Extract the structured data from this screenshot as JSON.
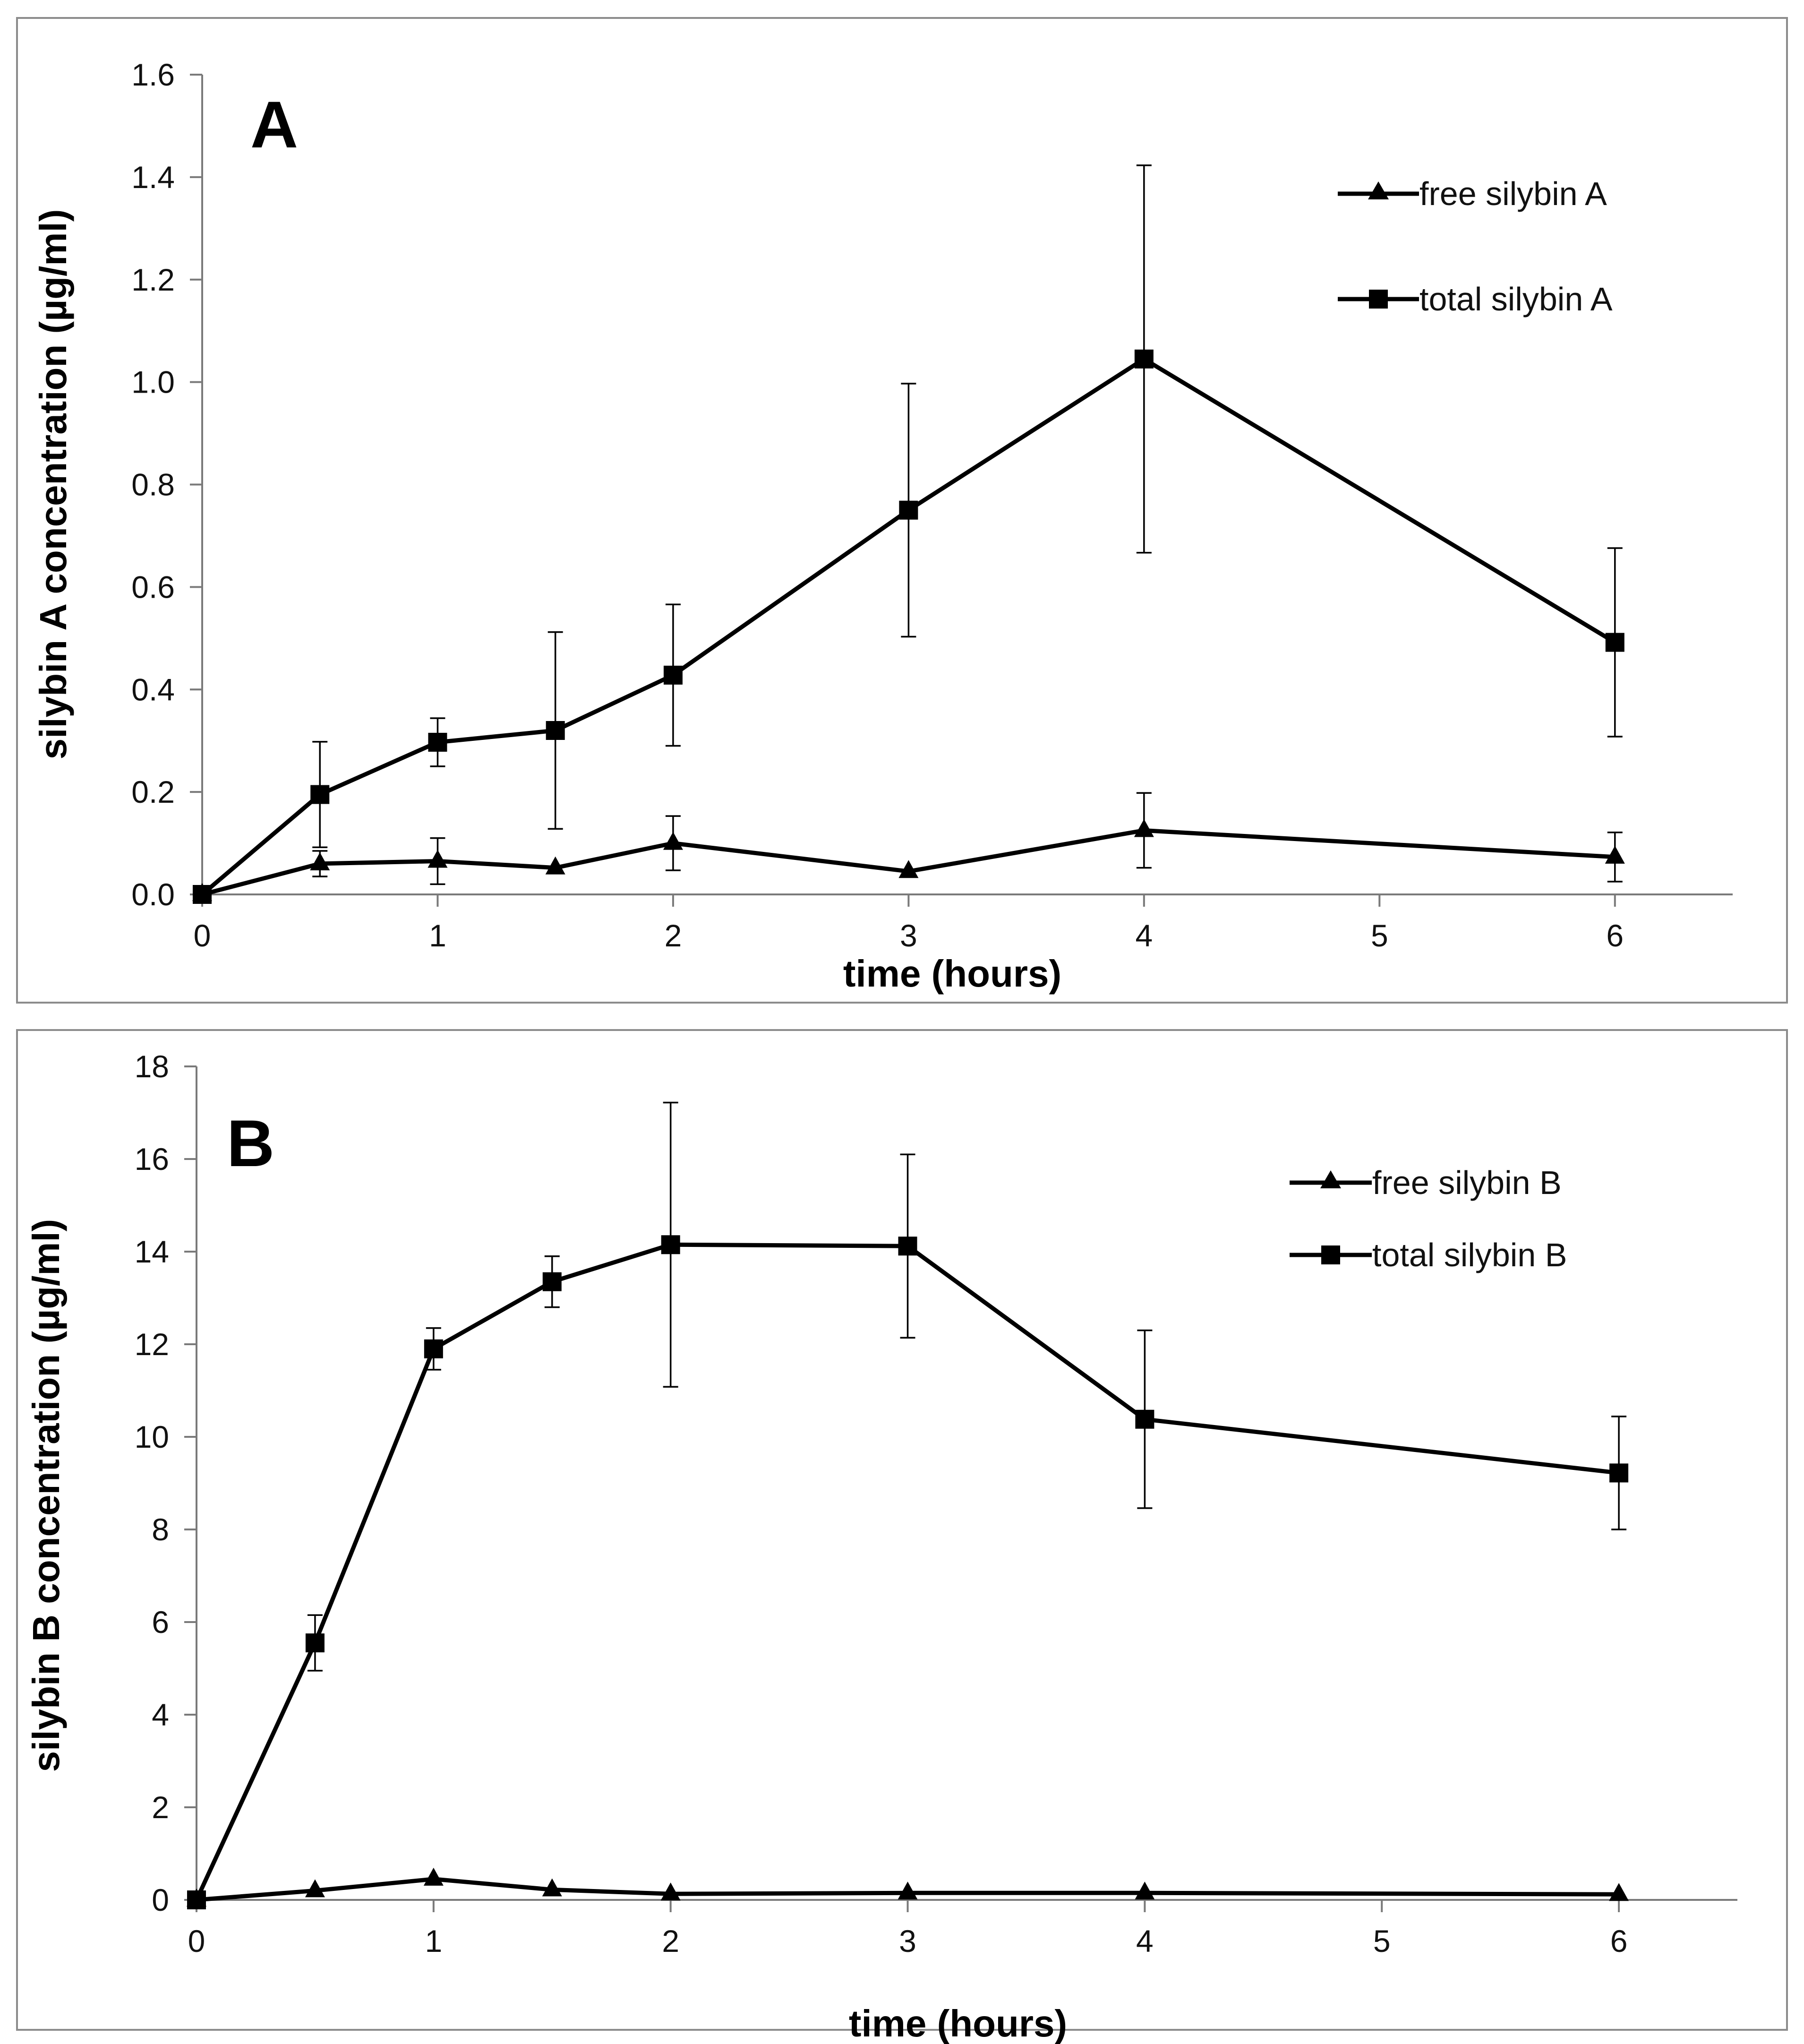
{
  "chart_data": [
    {
      "type": "line",
      "panel_label": "A",
      "xlabel": "time (hours)",
      "ylabel": "silybin A  concentration (µg/ml)",
      "xlim": [
        0,
        6.5
      ],
      "ylim": [
        0,
        1.6
      ],
      "xticks": [
        "0",
        "1",
        "2",
        "3",
        "4",
        "5",
        "6"
      ],
      "yticks": [
        "0.0",
        "0.2",
        "0.4",
        "0.6",
        "0.8",
        "1.0",
        "1.2",
        "1.4",
        "1.6"
      ],
      "legend_position": "top-right",
      "series": [
        {
          "name": "free silybin A",
          "marker": "triangle",
          "x": [
            0,
            0.5,
            1,
            1.5,
            2,
            3,
            4,
            6
          ],
          "values": [
            0.0,
            0.06,
            0.065,
            0.052,
            0.1,
            0.045,
            0.125,
            0.073
          ],
          "error": [
            0.0,
            0.025,
            0.045,
            0.0,
            0.053,
            0.0,
            0.073,
            0.048
          ]
        },
        {
          "name": "total silybin A",
          "marker": "square",
          "x": [
            0,
            0.5,
            1,
            1.5,
            2,
            3,
            4,
            6
          ],
          "values": [
            0.0,
            0.195,
            0.297,
            0.32,
            0.428,
            0.75,
            1.045,
            0.492
          ],
          "error": [
            0.0,
            0.103,
            0.047,
            0.192,
            0.138,
            0.247,
            0.378,
            0.184
          ]
        }
      ]
    },
    {
      "type": "line",
      "panel_label": "B",
      "xlabel": "time (hours)",
      "ylabel": "silybin B concentration  (µg/ml)",
      "xlim": [
        0,
        6.5
      ],
      "ylim": [
        0,
        18
      ],
      "xticks": [
        "0",
        "1",
        "2",
        "3",
        "4",
        "5",
        "6"
      ],
      "yticks": [
        "0",
        "2",
        "4",
        "6",
        "8",
        "10",
        "12",
        "14",
        "16",
        "18"
      ],
      "legend_position": "top-right",
      "series": [
        {
          "name": "free silybin B",
          "marker": "triangle",
          "x": [
            0,
            0.5,
            1,
            1.5,
            2,
            3,
            4,
            6
          ],
          "values": [
            0.0,
            0.2,
            0.45,
            0.22,
            0.13,
            0.15,
            0.15,
            0.12
          ],
          "error": [
            0,
            0,
            0,
            0,
            0,
            0,
            0,
            0
          ]
        },
        {
          "name": "total silybin B",
          "marker": "square",
          "x": [
            0,
            0.5,
            1,
            1.5,
            2,
            3,
            4,
            6
          ],
          "values": [
            0.0,
            5.55,
            11.9,
            13.35,
            14.15,
            14.12,
            10.38,
            9.22
          ],
          "error": [
            0.0,
            0.6,
            0.45,
            0.55,
            3.07,
            1.98,
            1.92,
            1.22
          ]
        }
      ]
    }
  ],
  "colors": {
    "line": "#000000",
    "frame": "#8c8c8c",
    "axis": "#7a7a7a",
    "background": "#ffffff"
  }
}
